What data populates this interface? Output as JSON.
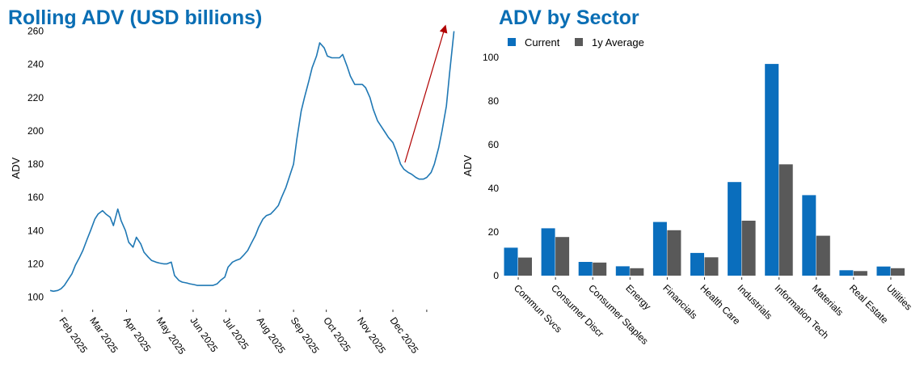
{
  "colors": {
    "title": "#0A6EB4",
    "line": "#1F78B4",
    "current": "#0A6EBD",
    "average": "#595959",
    "arrow": "#B00000"
  },
  "chart_data": [
    {
      "type": "line",
      "title": "Rolling ADV (USD billions)",
      "ylabel": "ADV",
      "xlabel": "",
      "ylim": [
        100,
        262
      ],
      "yticks": [
        100,
        120,
        140,
        160,
        180,
        200,
        220,
        240,
        260
      ],
      "xlim": [
        "2025-01-21",
        "2026-01-27"
      ],
      "xticks": [
        {
          "date": "2025-02-01",
          "label": "Feb 2025"
        },
        {
          "date": "2025-03-01",
          "label": "Mar 2025"
        },
        {
          "date": "2025-04-01",
          "label": "Apr 2025"
        },
        {
          "date": "2025-05-01",
          "label": "May 2025"
        },
        {
          "date": "2025-06-01",
          "label": "Jun 2025"
        },
        {
          "date": "2025-07-01",
          "label": "Jul 2025"
        },
        {
          "date": "2025-08-01",
          "label": "Aug 2025"
        },
        {
          "date": "2025-09-01",
          "label": "Sep 2025"
        },
        {
          "date": "2025-10-01",
          "label": "Oct 2025"
        },
        {
          "date": "2025-11-01",
          "label": "Nov 2025"
        },
        {
          "date": "2025-12-01",
          "label": "Dec 2025"
        },
        {
          "date": "2026-01-01",
          "label": ""
        }
      ],
      "series": [
        {
          "x": [
            "2025-01-21",
            "2025-01-24",
            "2025-01-28",
            "2025-01-31",
            "2025-02-03",
            "2025-02-06",
            "2025-02-10",
            "2025-02-13",
            "2025-02-17",
            "2025-02-20",
            "2025-02-24",
            "2025-02-27",
            "2025-03-03",
            "2025-03-06",
            "2025-03-10",
            "2025-03-13",
            "2025-03-17",
            "2025-03-20",
            "2025-03-24",
            "2025-03-27",
            "2025-03-31",
            "2025-04-03",
            "2025-04-07",
            "2025-04-10",
            "2025-04-14",
            "2025-04-17",
            "2025-04-21",
            "2025-04-24",
            "2025-04-28",
            "2025-05-01",
            "2025-05-05",
            "2025-05-08",
            "2025-05-12",
            "2025-05-15",
            "2025-05-19",
            "2025-05-22",
            "2025-05-26",
            "2025-05-29",
            "2025-06-02",
            "2025-06-05",
            "2025-06-09",
            "2025-06-12",
            "2025-06-16",
            "2025-06-19",
            "2025-06-23",
            "2025-06-26",
            "2025-06-30",
            "2025-07-03",
            "2025-07-07",
            "2025-07-10",
            "2025-07-14",
            "2025-07-17",
            "2025-07-21",
            "2025-07-24",
            "2025-07-28",
            "2025-07-31",
            "2025-08-04",
            "2025-08-07",
            "2025-08-11",
            "2025-08-14",
            "2025-08-18",
            "2025-08-21",
            "2025-08-25",
            "2025-08-28",
            "2025-09-01",
            "2025-09-04",
            "2025-09-08",
            "2025-09-11",
            "2025-09-15",
            "2025-09-18",
            "2025-09-22",
            "2025-09-25",
            "2025-09-29",
            "2025-10-02",
            "2025-10-06",
            "2025-10-09",
            "2025-10-13",
            "2025-10-16",
            "2025-10-20",
            "2025-10-23",
            "2025-10-27",
            "2025-10-30",
            "2025-11-03",
            "2025-11-06",
            "2025-11-10",
            "2025-11-13",
            "2025-11-17",
            "2025-11-20",
            "2025-11-24",
            "2025-11-27",
            "2025-12-01",
            "2025-12-04",
            "2025-12-08",
            "2025-12-11",
            "2025-12-15",
            "2025-12-18",
            "2025-12-22",
            "2025-12-25",
            "2025-12-29",
            "2026-01-01",
            "2026-01-05",
            "2026-01-08",
            "2026-01-12",
            "2026-01-15",
            "2026-01-19",
            "2026-01-22",
            "2026-01-26"
          ],
          "y": [
            104,
            103.5,
            104,
            105,
            107,
            110,
            114,
            119,
            124,
            128,
            135,
            140,
            147,
            150,
            152,
            150,
            148,
            143,
            153,
            146,
            140,
            133,
            130,
            136,
            132,
            127,
            124,
            122,
            121,
            120.5,
            120,
            120,
            121,
            113,
            110,
            109,
            108.5,
            108,
            107.5,
            107,
            107,
            107,
            107,
            107,
            108,
            110,
            112,
            118,
            121,
            122,
            123,
            125,
            128,
            132,
            137,
            142,
            147,
            149,
            150,
            152,
            155,
            160,
            166,
            172,
            180,
            195,
            212,
            220,
            230,
            238,
            245,
            253,
            250,
            245,
            244,
            244,
            244,
            246,
            239,
            233,
            228,
            228,
            228,
            226,
            220,
            213,
            206,
            203,
            199,
            196,
            193,
            188,
            180,
            177,
            175,
            174,
            172,
            171,
            171,
            172,
            175,
            180,
            190,
            200,
            215,
            235,
            260
          ]
        }
      ],
      "annotation": {
        "type": "arrow",
        "from": {
          "x": "2025-12-12",
          "y": 181
        },
        "to": {
          "x": "2026-01-18",
          "y": 263
        }
      }
    },
    {
      "type": "bar",
      "title": "ADV by Sector",
      "ylabel": "ADV",
      "xlabel": "",
      "ylim": [
        0,
        100
      ],
      "yticks": [
        0,
        20,
        40,
        60,
        80,
        100
      ],
      "legend_position": "top-left",
      "categories": [
        "Commun Svcs",
        "Consumer Discr",
        "Consumer Staples",
        "Energy",
        "Financials",
        "Health Care",
        "Industrials",
        "Information Tech",
        "Materials",
        "Real Estate",
        "Utilities"
      ],
      "series": [
        {
          "name": "Current",
          "values": [
            12.8,
            21.7,
            6.3,
            4.3,
            24.6,
            10.4,
            42.9,
            97.0,
            36.9,
            2.5,
            4.2
          ]
        },
        {
          "name": "1y Average",
          "values": [
            8.3,
            17.7,
            6.0,
            3.4,
            20.8,
            8.4,
            25.2,
            51.0,
            18.3,
            2.1,
            3.4
          ]
        }
      ]
    }
  ]
}
